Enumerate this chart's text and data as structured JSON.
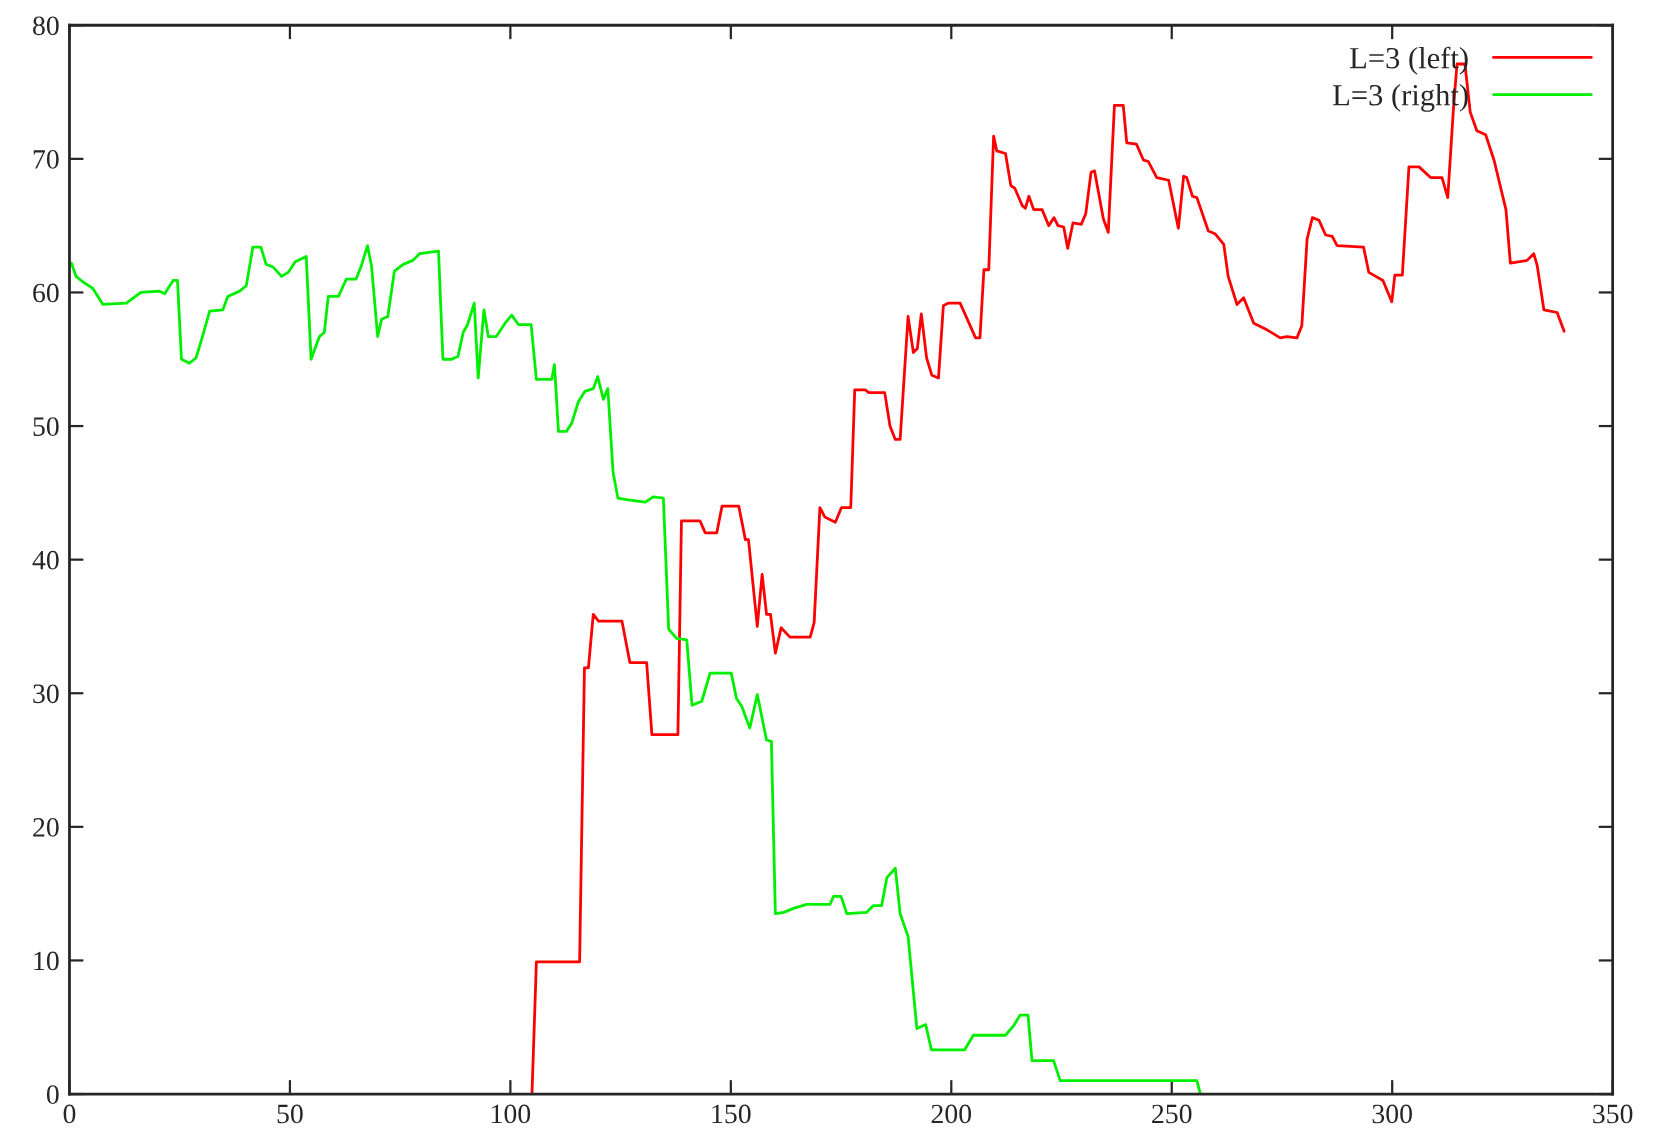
{
  "chart_data": {
    "type": "line",
    "xlim": [
      0,
      350
    ],
    "ylim": [
      0,
      80
    ],
    "xticks": [
      0,
      50,
      100,
      150,
      200,
      250,
      300,
      350
    ],
    "yticks": [
      0,
      10,
      20,
      30,
      40,
      50,
      60,
      70,
      80
    ],
    "grid": false,
    "legend": "top right",
    "marker": "none",
    "line_style": "solid",
    "series": [
      {
        "name": "L=3 (left)",
        "color": "#ff0000",
        "x": [
          104.9,
          105.9,
          115.7,
          116.8,
          117.7,
          118.8,
          120,
          125.3,
          127.1,
          130.9,
          132.1,
          138,
          138.8,
          143,
          144.2,
          146.8,
          148,
          151.8,
          153.3,
          154,
          156,
          157.1,
          158.1,
          159,
          160.1,
          161.4,
          163.4,
          168,
          168.9,
          170.2,
          171.3,
          173.7,
          175.1,
          177.2,
          178.1,
          180.5,
          181.3,
          184.9,
          186.1,
          187.3,
          188.4,
          190.2,
          191.4,
          192.3,
          193.2,
          194.4,
          195.6,
          197.1,
          198.2,
          199.3,
          202,
          204.3,
          205.5,
          206.5,
          207.4,
          208.5,
          209.6,
          210.3,
          212.3,
          213.5,
          214.4,
          216.1,
          216.8,
          217.6,
          218.7,
          220.6,
          222.1,
          223.3,
          224.2,
          225.5,
          226.4,
          227.6,
          229.5,
          230.5,
          231.7,
          232.5,
          234.5,
          235.6,
          237,
          239,
          239.8,
          242,
          243.6,
          244.7,
          246.6,
          249.3,
          251.5,
          252.7,
          253.4,
          254.7,
          255.7,
          258.3,
          259.8,
          261.8,
          262.8,
          264.8,
          266.3,
          268.6,
          271.6,
          274.6,
          276.1,
          278.4,
          279.5,
          280.7,
          281.9,
          283.4,
          284.9,
          286.4,
          287.5,
          293.5,
          294.7,
          297.9,
          299.9,
          300.6,
          302.3,
          303.8,
          306.1,
          308.7,
          311.3,
          312.6,
          313.9,
          314.7,
          316.5,
          317.7,
          319.2,
          321.2,
          323.1,
          325.8,
          326.8,
          330.6,
          332.1,
          332.9,
          334.4,
          337.4,
          339
        ],
        "values": [
          0,
          9.9,
          9.9,
          31.9,
          31.9,
          35.9,
          35.4,
          35.4,
          32.3,
          32.3,
          26.9,
          26.9,
          42.9,
          42.9,
          42,
          42,
          44,
          44,
          41.5,
          41.5,
          35,
          38.9,
          35.9,
          35.9,
          33,
          34.9,
          34.2,
          34.2,
          35.3,
          43.9,
          43.2,
          42.8,
          43.9,
          43.9,
          52.7,
          52.7,
          52.5,
          52.5,
          50,
          49,
          49,
          58.2,
          55.5,
          55.8,
          58.4,
          55.1,
          53.8,
          53.6,
          59,
          59.2,
          59.2,
          57.5,
          56.6,
          56.6,
          61.7,
          61.7,
          71.7,
          70.6,
          70.4,
          68,
          67.8,
          66.5,
          66.3,
          67.2,
          66.2,
          66.2,
          65,
          65.6,
          65,
          64.9,
          63.3,
          65.2,
          65.1,
          65.9,
          69,
          69.1,
          65.5,
          64.5,
          74,
          74,
          71.2,
          71.1,
          69.9,
          69.8,
          68.6,
          68.4,
          64.8,
          68.7,
          68.6,
          67.2,
          67.1,
          64.6,
          64.4,
          63.6,
          61.2,
          59.1,
          59.6,
          57.7,
          57.2,
          56.6,
          56.7,
          56.6,
          57.5,
          64,
          65.6,
          65.4,
          64.3,
          64.2,
          63.5,
          63.4,
          61.5,
          60.9,
          59.3,
          61.3,
          61.3,
          69.4,
          69.4,
          68.6,
          68.6,
          67.1,
          73.8,
          77.1,
          77.1,
          73.5,
          72.1,
          71.8,
          69.9,
          66.2,
          62.2,
          62.4,
          62.9,
          62,
          58.7,
          58.5,
          57.1
        ]
      },
      {
        "name": "L=3 (right)",
        "color": "#00ee00",
        "x": [
          0.45,
          1.5,
          3,
          5.3,
          7.6,
          12.9,
          16.2,
          20.4,
          21.6,
          23.5,
          24.5,
          25.4,
          27.2,
          28.7,
          30,
          31.8,
          34.8,
          35.9,
          38.6,
          40.1,
          41.6,
          43.4,
          44.6,
          46.2,
          48.1,
          49.6,
          51.2,
          53.7,
          54.8,
          56.7,
          57.8,
          58.7,
          61,
          62.8,
          65,
          66.1,
          67.6,
          68.5,
          69.9,
          70.8,
          72.2,
          73.7,
          75.7,
          77.9,
          79.4,
          83.7,
          84.7,
          86.7,
          88.1,
          89.3,
          90.3,
          91.8,
          92.7,
          94,
          95,
          96.8,
          98.8,
          100.3,
          101.8,
          104.7,
          105.9,
          109.4,
          110,
          110.9,
          112.7,
          113.9,
          115.4,
          116.9,
          118.8,
          119.8,
          121.1,
          122.1,
          123.3,
          124.4,
          126.3,
          130.6,
          132.4,
          134.7,
          135.9,
          137.7,
          140,
          141.2,
          143.4,
          145.3,
          150.1,
          151.3,
          152.5,
          154.3,
          156,
          158.1,
          159.2,
          160.1,
          162,
          164.2,
          167.2,
          172.5,
          173.3,
          175,
          176.3,
          180.8,
          182.3,
          184.2,
          185.4,
          187.3,
          188.4,
          190.2,
          192.2,
          194.2,
          195.5,
          203,
          205,
          212.3,
          214.1,
          215.6,
          217.4,
          218.3,
          223.2,
          224.7,
          255.7,
          256.5
        ],
        "values": [
          62.2,
          61.2,
          60.8,
          60.3,
          59.1,
          59.2,
          60,
          60.1,
          59.9,
          60.9,
          60.9,
          55,
          54.7,
          55.1,
          56.5,
          58.6,
          58.7,
          59.7,
          60.1,
          60.5,
          63.4,
          63.4,
          62.1,
          61.9,
          61.2,
          61.5,
          62.3,
          62.7,
          55,
          56.7,
          57,
          59.7,
          59.7,
          61,
          61,
          61.9,
          63.5,
          62,
          56.7,
          58,
          58.2,
          61.6,
          62.1,
          62.4,
          62.9,
          63.1,
          55,
          55,
          55.2,
          57,
          57.6,
          59.2,
          53.6,
          58.7,
          56.7,
          56.7,
          57.7,
          58.3,
          57.6,
          57.6,
          53.5,
          53.5,
          54.6,
          49.6,
          49.6,
          50.2,
          51.8,
          52.6,
          52.8,
          53.7,
          52,
          52.8,
          46.5,
          44.6,
          44.5,
          44.3,
          44.7,
          44.6,
          34.8,
          34.1,
          34,
          29.1,
          29.4,
          31.5,
          31.5,
          29.6,
          29,
          27.4,
          29.9,
          26.5,
          26.4,
          13.5,
          13.6,
          13.9,
          14.2,
          14.2,
          14.8,
          14.8,
          13.5,
          13.6,
          14.1,
          14.1,
          16.2,
          16.9,
          13.5,
          11.8,
          4.9,
          5.2,
          3.3,
          3.3,
          4.4,
          4.4,
          5.1,
          5.9,
          5.9,
          2.5,
          2.5,
          1,
          1,
          0
        ]
      }
    ]
  }
}
